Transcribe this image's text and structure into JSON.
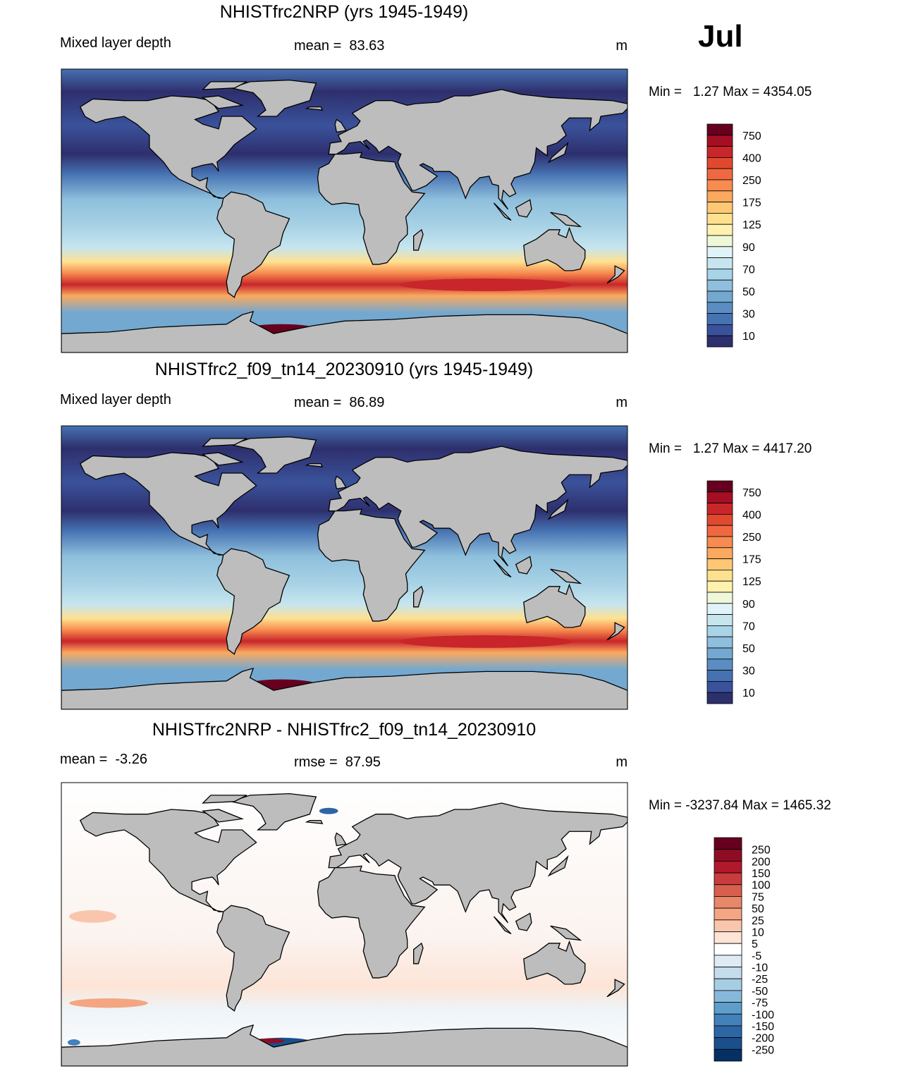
{
  "month": "Jul",
  "panels": [
    {
      "title": "NHISTfrc2NRP (yrs 1945-1949)",
      "left_label": "Mixed layer depth",
      "center_label": "mean =  83.63",
      "unit": "m",
      "range_label": "Min =   1.27 Max = 4354.05",
      "colorbar": {
        "labels": [
          "750",
          "400",
          "250",
          "175",
          "125",
          "90",
          "70",
          "50",
          "30",
          "10"
        ],
        "colors": [
          "#67001f",
          "#a50f23",
          "#c8262a",
          "#e0492f",
          "#f06840",
          "#f88b4f",
          "#fba95f",
          "#fdc776",
          "#fee18f",
          "#fff2ae",
          "#eef7d8",
          "#e0f3f8",
          "#c6e5ef",
          "#a9d3e6",
          "#8ebfdc",
          "#73a8d0",
          "#5a8ec3",
          "#4672b2",
          "#3a529b",
          "#2e2f6d"
        ]
      }
    },
    {
      "title": "NHISTfrc2_f09_tn14_20230910 (yrs 1945-1949)",
      "left_label": "Mixed layer depth",
      "center_label": "mean =  86.89",
      "unit": "m",
      "range_label": "Min =   1.27 Max = 4417.20",
      "colorbar": {
        "labels": [
          "750",
          "400",
          "250",
          "175",
          "125",
          "90",
          "70",
          "50",
          "30",
          "10"
        ],
        "colors": [
          "#67001f",
          "#a50f23",
          "#c8262a",
          "#e0492f",
          "#f06840",
          "#f88b4f",
          "#fba95f",
          "#fdc776",
          "#fee18f",
          "#fff2ae",
          "#eef7d8",
          "#e0f3f8",
          "#c6e5ef",
          "#a9d3e6",
          "#8ebfdc",
          "#73a8d0",
          "#5a8ec3",
          "#4672b2",
          "#3a529b",
          "#2e2f6d"
        ]
      }
    },
    {
      "title": "NHISTfrc2NRP - NHISTfrc2_f09_tn14_20230910",
      "left_label": "mean =  -3.26",
      "center_label": "rmse =  87.95",
      "unit": "m",
      "range_label": "Min = -3237.84 Max = 1465.32",
      "colorbar": {
        "labels": [
          "250",
          "200",
          "150",
          "100",
          "75",
          "50",
          "25",
          "10",
          "5",
          "-5",
          "-10",
          "-25",
          "-50",
          "-75",
          "-100",
          "-150",
          "-200",
          "-250"
        ],
        "colors": [
          "#67001f",
          "#8e0d25",
          "#b2182b",
          "#c73d3d",
          "#d6604d",
          "#e8876a",
          "#f4a582",
          "#f9c6ad",
          "#fde4d6",
          "#ffffff",
          "#deebf4",
          "#c4dcec",
          "#a6cde3",
          "#86b9d9",
          "#5f9ecb",
          "#4381ba",
          "#2c66a5",
          "#1a4f8c",
          "#053061"
        ]
      }
    }
  ]
}
